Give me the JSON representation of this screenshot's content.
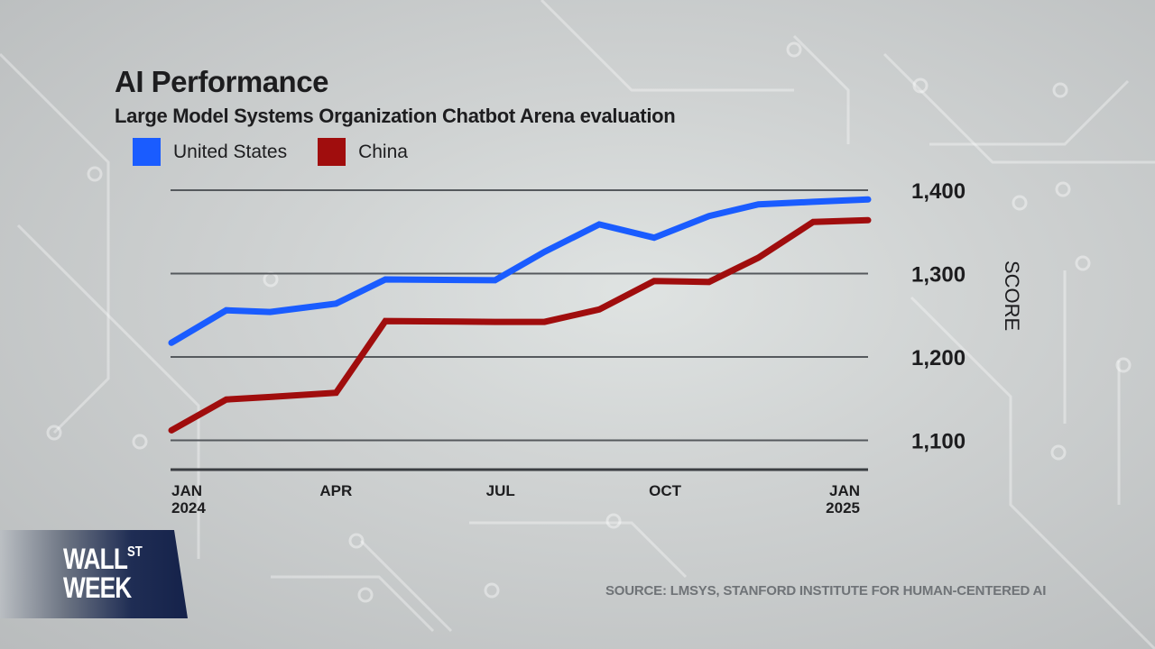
{
  "chart_data": {
    "type": "line",
    "title": "AI Performance",
    "subtitle": "Large Model Systems Organization Chatbot Arena evaluation",
    "xlabel": "",
    "ylabel": "SCORE",
    "x_range": [
      0,
      12.7
    ],
    "x_ticks": [
      {
        "pos": 0,
        "label": [
          "JAN",
          "2024"
        ]
      },
      {
        "pos": 3,
        "label": [
          "APR"
        ]
      },
      {
        "pos": 6,
        "label": [
          "JUL"
        ]
      },
      {
        "pos": 9,
        "label": [
          "OCT"
        ]
      },
      {
        "pos": 12,
        "label": [
          "JAN",
          "2025"
        ]
      }
    ],
    "ylim": [
      1065,
      1400
    ],
    "y_ticks": [
      1400,
      1300,
      1200,
      1100
    ],
    "y_tick_labels": [
      "1,400",
      "1,300",
      "1,200",
      "1,100"
    ],
    "y_axis_side": "right",
    "grid": true,
    "legend_position": "top-left",
    "series": [
      {
        "name": "United States",
        "color": "#1a5cff",
        "x": [
          0,
          1.0,
          1.8,
          3.0,
          3.9,
          5.9,
          6.8,
          7.8,
          8.8,
          9.8,
          10.7,
          11.7,
          12.7
        ],
        "values": [
          1217,
          1256,
          1254,
          1264,
          1293,
          1292,
          1326,
          1359,
          1343,
          1369,
          1383,
          1386,
          1389
        ]
      },
      {
        "name": "China",
        "color": "#a00d0d",
        "x": [
          0,
          1.0,
          1.8,
          3.0,
          3.9,
          5.9,
          6.8,
          7.8,
          8.8,
          9.8,
          10.7,
          11.7,
          12.7
        ],
        "values": [
          1112,
          1149,
          1152,
          1157,
          1243,
          1242,
          1242,
          1257,
          1291,
          1290,
          1319,
          1362,
          1364
        ]
      }
    ],
    "source": "SOURCE: LMSYS, STANFORD INSTITUTE FOR HUMAN-CENTERED AI"
  },
  "legend": [
    {
      "label": "United States",
      "color": "#1a5cff"
    },
    {
      "label": "China",
      "color": "#a00d0d"
    }
  ],
  "logo": {
    "line1": "WALL",
    "superscript": "ST",
    "line2": "WEEK"
  }
}
